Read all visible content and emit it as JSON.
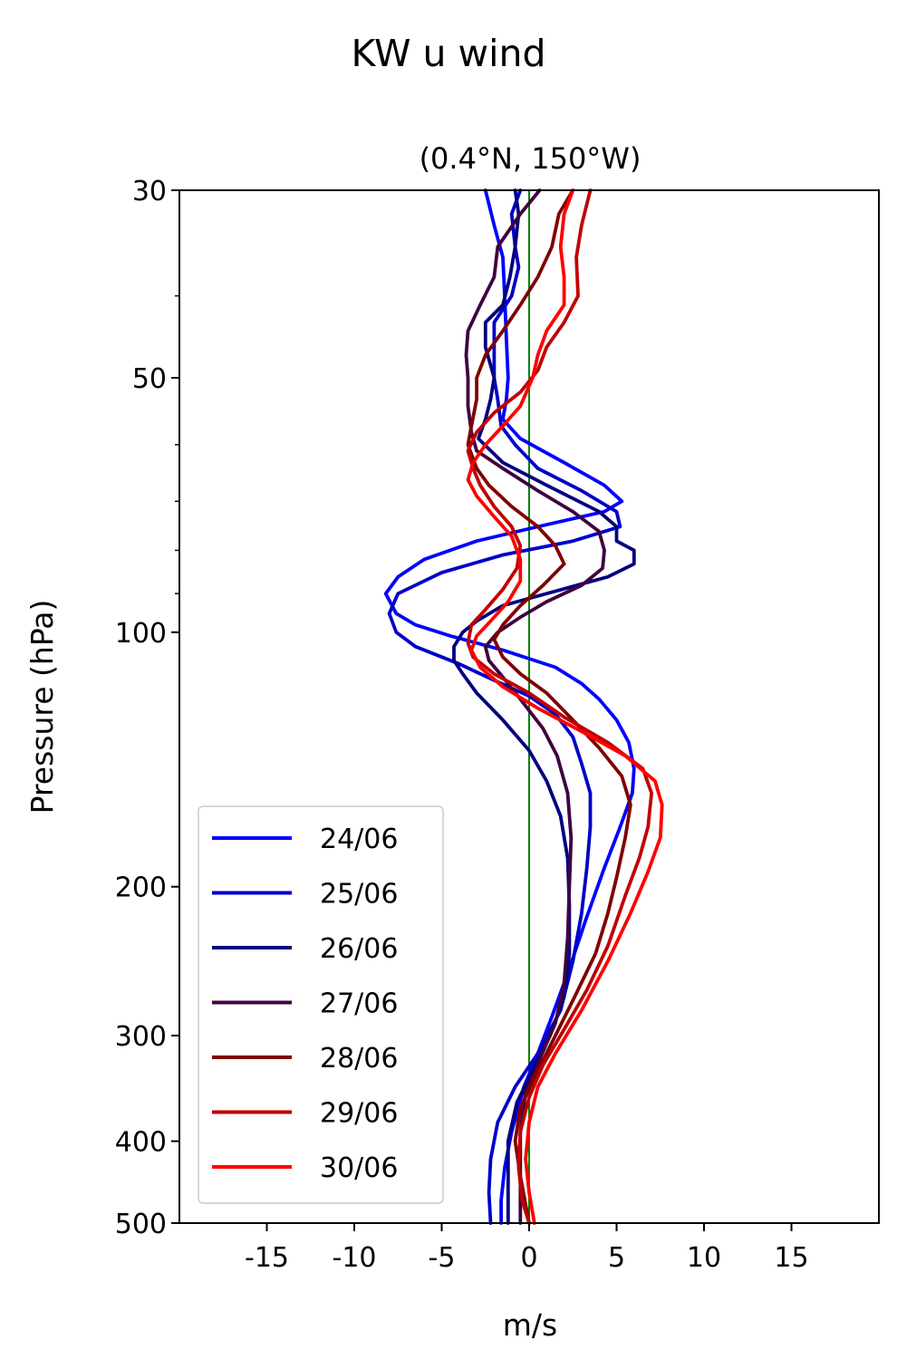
{
  "chart_data": {
    "type": "line",
    "title": "KW u wind",
    "subtitle": "(0.4°N, 150°W)",
    "xlabel": "m/s",
    "ylabel": "Pressure (hPa)",
    "xlim": [
      -20,
      20
    ],
    "ylim": [
      500,
      30
    ],
    "y_scale": "log",
    "x_ticks": [
      -15,
      -10,
      -5,
      0,
      5,
      10,
      15
    ],
    "y_ticks": [
      30,
      50,
      100,
      200,
      300,
      400,
      500
    ],
    "y_minor_ticks": [
      40,
      60,
      70,
      80,
      90
    ],
    "reference_line": {
      "x": 0,
      "color": "#008000"
    },
    "grid": false,
    "legend_position": "lower-left",
    "series": [
      {
        "name": "24/06",
        "color": "#0000ff",
        "points": [
          [
            -2.5,
            30
          ],
          [
            -2.0,
            33
          ],
          [
            -1.5,
            36
          ],
          [
            -1.4,
            40
          ],
          [
            -1.3,
            45
          ],
          [
            -1.2,
            50
          ],
          [
            -1.3,
            53
          ],
          [
            -1.5,
            56
          ],
          [
            -0.5,
            59
          ],
          [
            2.0,
            63
          ],
          [
            4.3,
            67
          ],
          [
            5.3,
            70
          ],
          [
            4.3,
            72
          ],
          [
            0.5,
            75
          ],
          [
            -3.0,
            78
          ],
          [
            -6.0,
            82
          ],
          [
            -7.5,
            86
          ],
          [
            -8.2,
            90
          ],
          [
            -7.6,
            95
          ],
          [
            -6.5,
            98
          ],
          [
            -4.5,
            101
          ],
          [
            -1.5,
            105
          ],
          [
            1.5,
            110
          ],
          [
            3.0,
            115
          ],
          [
            4.0,
            120
          ],
          [
            5.0,
            127
          ],
          [
            5.7,
            135
          ],
          [
            6.0,
            145
          ],
          [
            5.9,
            155
          ],
          [
            5.2,
            170
          ],
          [
            4.3,
            190
          ],
          [
            3.2,
            220
          ],
          [
            2.3,
            250
          ],
          [
            1.3,
            285
          ],
          [
            0.5,
            315
          ],
          [
            -0.3,
            345
          ],
          [
            -1.0,
            390
          ],
          [
            -1.4,
            430
          ],
          [
            -1.6,
            470
          ],
          [
            -1.6,
            500
          ]
        ]
      },
      {
        "name": "25/06",
        "color": "#0000c8",
        "points": [
          [
            -0.5,
            30
          ],
          [
            -1.0,
            32
          ],
          [
            -0.8,
            35
          ],
          [
            -0.6,
            37
          ],
          [
            -1.0,
            40
          ],
          [
            -2.0,
            43
          ],
          [
            -2.0,
            47
          ],
          [
            -2.0,
            50
          ],
          [
            -1.8,
            53
          ],
          [
            -1.6,
            57
          ],
          [
            -0.8,
            60
          ],
          [
            0.5,
            64
          ],
          [
            3.0,
            68
          ],
          [
            5.0,
            72
          ],
          [
            5.2,
            75
          ],
          [
            2.5,
            78
          ],
          [
            -1.5,
            81
          ],
          [
            -5.0,
            85
          ],
          [
            -7.5,
            90
          ],
          [
            -8.0,
            95
          ],
          [
            -7.6,
            100
          ],
          [
            -6.5,
            104
          ],
          [
            -4.0,
            109
          ],
          [
            -2.0,
            114
          ],
          [
            0.0,
            119
          ],
          [
            1.5,
            125
          ],
          [
            2.5,
            133
          ],
          [
            3.0,
            143
          ],
          [
            3.5,
            155
          ],
          [
            3.5,
            170
          ],
          [
            3.3,
            190
          ],
          [
            3.0,
            215
          ],
          [
            2.5,
            245
          ],
          [
            1.8,
            280
          ],
          [
            0.5,
            315
          ],
          [
            -0.8,
            345
          ],
          [
            -1.8,
            380
          ],
          [
            -2.2,
            420
          ],
          [
            -2.3,
            460
          ],
          [
            -2.2,
            500
          ]
        ]
      },
      {
        "name": "26/06",
        "color": "#000080",
        "points": [
          [
            -0.8,
            30
          ],
          [
            -0.6,
            32
          ],
          [
            -0.8,
            35
          ],
          [
            -1.1,
            38
          ],
          [
            -1.5,
            41
          ],
          [
            -2.5,
            43
          ],
          [
            -2.5,
            46
          ],
          [
            -2.0,
            50
          ],
          [
            -2.2,
            53
          ],
          [
            -2.5,
            56
          ],
          [
            -2.9,
            59
          ],
          [
            -1.5,
            63
          ],
          [
            1.0,
            67
          ],
          [
            4.0,
            72
          ],
          [
            5.0,
            75
          ],
          [
            5.0,
            78
          ],
          [
            6.0,
            80
          ],
          [
            6.0,
            83
          ],
          [
            4.5,
            86
          ],
          [
            1.0,
            90
          ],
          [
            -1.5,
            93
          ],
          [
            -3.0,
            97
          ],
          [
            -3.8,
            100
          ],
          [
            -4.3,
            104
          ],
          [
            -4.3,
            108
          ],
          [
            -3.8,
            112
          ],
          [
            -3.0,
            118
          ],
          [
            -1.5,
            127
          ],
          [
            0.0,
            138
          ],
          [
            1.0,
            150
          ],
          [
            1.8,
            165
          ],
          [
            2.2,
            185
          ],
          [
            2.3,
            210
          ],
          [
            2.3,
            240
          ],
          [
            2.0,
            270
          ],
          [
            1.2,
            300
          ],
          [
            0.2,
            330
          ],
          [
            -0.7,
            360
          ],
          [
            -1.2,
            400
          ],
          [
            -1.2,
            500
          ]
        ]
      },
      {
        "name": "27/06",
        "color": "#400040",
        "points": [
          [
            0.6,
            30
          ],
          [
            -0.5,
            32
          ],
          [
            -1.8,
            35
          ],
          [
            -2.0,
            38
          ],
          [
            -2.8,
            41
          ],
          [
            -3.5,
            44
          ],
          [
            -3.6,
            47
          ],
          [
            -3.5,
            50
          ],
          [
            -3.5,
            54
          ],
          [
            -3.3,
            58
          ],
          [
            -3.0,
            61
          ],
          [
            -1.5,
            64
          ],
          [
            0.5,
            68
          ],
          [
            2.5,
            72
          ],
          [
            4.0,
            76
          ],
          [
            4.3,
            80
          ],
          [
            4.2,
            84
          ],
          [
            3.0,
            88
          ],
          [
            1.0,
            92
          ],
          [
            -0.5,
            96
          ],
          [
            -1.8,
            100
          ],
          [
            -2.5,
            104
          ],
          [
            -2.3,
            108
          ],
          [
            -1.5,
            113
          ],
          [
            -0.5,
            120
          ],
          [
            0.8,
            130
          ],
          [
            1.6,
            140
          ],
          [
            2.2,
            155
          ],
          [
            2.4,
            175
          ],
          [
            2.3,
            200
          ],
          [
            2.2,
            230
          ],
          [
            2.0,
            260
          ],
          [
            1.5,
            290
          ],
          [
            0.6,
            320
          ],
          [
            -0.2,
            350
          ],
          [
            -0.5,
            390
          ],
          [
            -0.5,
            500
          ]
        ]
      },
      {
        "name": "28/06",
        "color": "#800000",
        "points": [
          [
            2.5,
            30
          ],
          [
            1.7,
            32
          ],
          [
            1.3,
            35
          ],
          [
            0.5,
            38
          ],
          [
            -0.5,
            41
          ],
          [
            -1.5,
            44
          ],
          [
            -2.5,
            47
          ],
          [
            -3.0,
            50
          ],
          [
            -3.0,
            53
          ],
          [
            -3.3,
            57
          ],
          [
            -3.5,
            60
          ],
          [
            -3.0,
            64
          ],
          [
            -2.3,
            67
          ],
          [
            -1.0,
            71
          ],
          [
            0.5,
            75
          ],
          [
            1.5,
            79
          ],
          [
            2.0,
            83
          ],
          [
            0.8,
            88
          ],
          [
            -0.5,
            93
          ],
          [
            -1.5,
            98
          ],
          [
            -2.0,
            102
          ],
          [
            -1.5,
            107
          ],
          [
            -0.5,
            112
          ],
          [
            1.0,
            118
          ],
          [
            2.5,
            127
          ],
          [
            4.0,
            137
          ],
          [
            5.3,
            148
          ],
          [
            5.8,
            160
          ],
          [
            5.5,
            175
          ],
          [
            5.0,
            195
          ],
          [
            4.5,
            215
          ],
          [
            3.8,
            240
          ],
          [
            2.6,
            270
          ],
          [
            1.5,
            300
          ],
          [
            0.5,
            330
          ],
          [
            -0.5,
            365
          ],
          [
            -0.8,
            400
          ],
          [
            -0.5,
            440
          ],
          [
            0.0,
            500
          ]
        ]
      },
      {
        "name": "29/06",
        "color": "#c00000",
        "points": [
          [
            3.5,
            30
          ],
          [
            3.0,
            33
          ],
          [
            2.7,
            36
          ],
          [
            2.8,
            40
          ],
          [
            2.0,
            43
          ],
          [
            1.0,
            46
          ],
          [
            0.5,
            49
          ],
          [
            -0.5,
            52
          ],
          [
            -2.0,
            55
          ],
          [
            -3.0,
            58
          ],
          [
            -3.5,
            61
          ],
          [
            -3.2,
            64
          ],
          [
            -2.8,
            67
          ],
          [
            -2.0,
            71
          ],
          [
            -1.0,
            75
          ],
          [
            -0.5,
            79
          ],
          [
            -0.7,
            84
          ],
          [
            -1.5,
            89
          ],
          [
            -2.5,
            94
          ],
          [
            -3.3,
            98
          ],
          [
            -3.5,
            103
          ],
          [
            -3.2,
            107
          ],
          [
            -2.0,
            112
          ],
          [
            0.0,
            118
          ],
          [
            2.0,
            126
          ],
          [
            4.5,
            135
          ],
          [
            6.5,
            145
          ],
          [
            7.0,
            155
          ],
          [
            6.8,
            170
          ],
          [
            6.3,
            185
          ],
          [
            5.5,
            205
          ],
          [
            4.5,
            235
          ],
          [
            3.3,
            265
          ],
          [
            2.0,
            295
          ],
          [
            0.8,
            325
          ],
          [
            0.0,
            355
          ],
          [
            -0.5,
            390
          ],
          [
            -0.6,
            430
          ],
          [
            -0.4,
            470
          ],
          [
            0.0,
            500
          ]
        ]
      },
      {
        "name": "30/06",
        "color": "#ff0000",
        "points": [
          [
            2.5,
            30
          ],
          [
            2.0,
            32
          ],
          [
            1.8,
            35
          ],
          [
            2.0,
            38
          ],
          [
            2.0,
            41
          ],
          [
            1.0,
            44
          ],
          [
            0.5,
            47
          ],
          [
            0.2,
            50
          ],
          [
            -0.5,
            54
          ],
          [
            -1.5,
            57
          ],
          [
            -2.5,
            60
          ],
          [
            -3.2,
            63
          ],
          [
            -3.5,
            66
          ],
          [
            -3.0,
            69
          ],
          [
            -2.0,
            73
          ],
          [
            -1.0,
            77
          ],
          [
            -0.5,
            82
          ],
          [
            -0.5,
            87
          ],
          [
            -1.2,
            92
          ],
          [
            -2.2,
            97
          ],
          [
            -3.0,
            101
          ],
          [
            -3.3,
            105
          ],
          [
            -2.8,
            110
          ],
          [
            -1.5,
            116
          ],
          [
            0.5,
            123
          ],
          [
            3.0,
            131
          ],
          [
            5.5,
            140
          ],
          [
            7.2,
            150
          ],
          [
            7.6,
            160
          ],
          [
            7.5,
            175
          ],
          [
            6.8,
            192
          ],
          [
            5.8,
            215
          ],
          [
            4.5,
            245
          ],
          [
            3.0,
            280
          ],
          [
            1.5,
            315
          ],
          [
            0.5,
            345
          ],
          [
            0.0,
            380
          ],
          [
            -0.2,
            420
          ],
          [
            0.0,
            460
          ],
          [
            0.3,
            500
          ]
        ]
      }
    ]
  }
}
